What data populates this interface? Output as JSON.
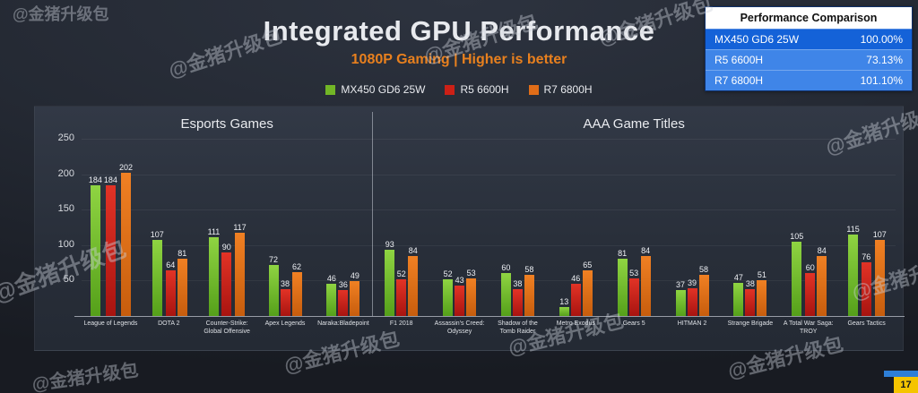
{
  "header": {
    "title": "Integrated GPU Performance",
    "subtitle": "1080P Gaming | Higher is better"
  },
  "legend": [
    {
      "label": "MX450 GD6 25W",
      "color": "#72b626"
    },
    {
      "label": "R5 6600H",
      "color": "#cc2016"
    },
    {
      "label": "R7 6800H",
      "color": "#e06d18"
    }
  ],
  "comparison_table": {
    "title": "Performance Comparison",
    "rows": [
      {
        "label": "MX450 GD6 25W",
        "value": "100.00%",
        "highlight": true
      },
      {
        "label": "R5 6600H",
        "value": "73.13%",
        "highlight": false
      },
      {
        "label": "R7 6800H",
        "value": "101.10%",
        "highlight": false
      }
    ]
  },
  "chart_data": {
    "type": "bar",
    "sections": [
      {
        "label": "Esports Games"
      },
      {
        "label": "AAA Game Titles"
      }
    ],
    "section_split_index": 5,
    "categories": [
      "League of Legends",
      "DOTA 2",
      "Counter-Strike: Global Offensive",
      "Apex Legends",
      "Naraka:Bladepoint",
      "F1 2018",
      "Assassin's Creed: Odyssey",
      "Shadow of the Tomb Raider",
      "Metro Exodus",
      "Gears 5",
      "HITMAN 2",
      "Strange Brigade",
      "A Total War Saga: TROY",
      "Gears Tactics"
    ],
    "series": [
      {
        "name": "MX450 GD6 25W",
        "color_top": "#8fd442",
        "color_bottom": "#55a01a",
        "values": [
          184,
          107,
          111,
          72,
          46,
          93,
          52,
          60,
          13,
          81,
          37,
          47,
          105,
          115
        ]
      },
      {
        "name": "R5 6600H",
        "color_top": "#e23326",
        "color_bottom": "#a81410",
        "values": [
          184,
          64,
          90,
          38,
          36,
          52,
          43,
          38,
          46,
          53,
          39,
          38,
          60,
          76
        ]
      },
      {
        "name": "R7 6800H",
        "color_top": "#f08023",
        "color_bottom": "#c75d0d",
        "values": [
          202,
          81,
          117,
          62,
          49,
          84,
          53,
          58,
          65,
          84,
          58,
          51,
          84,
          107
        ]
      }
    ],
    "ylim": [
      0,
      250
    ],
    "yticks": [
      50,
      100,
      150,
      200,
      250
    ],
    "grid": true,
    "legend_position": "top"
  },
  "colors": {
    "accent_orange": "#e8801e",
    "table_header_bg": "#ffffff",
    "table_row_highlight": "#1462d8",
    "table_row": "#3f85e8",
    "page_box": "#f5c400",
    "page_strip": "#2e7fd8"
  },
  "watermark": {
    "text": "@金猪升级包"
  },
  "page_number": "17"
}
